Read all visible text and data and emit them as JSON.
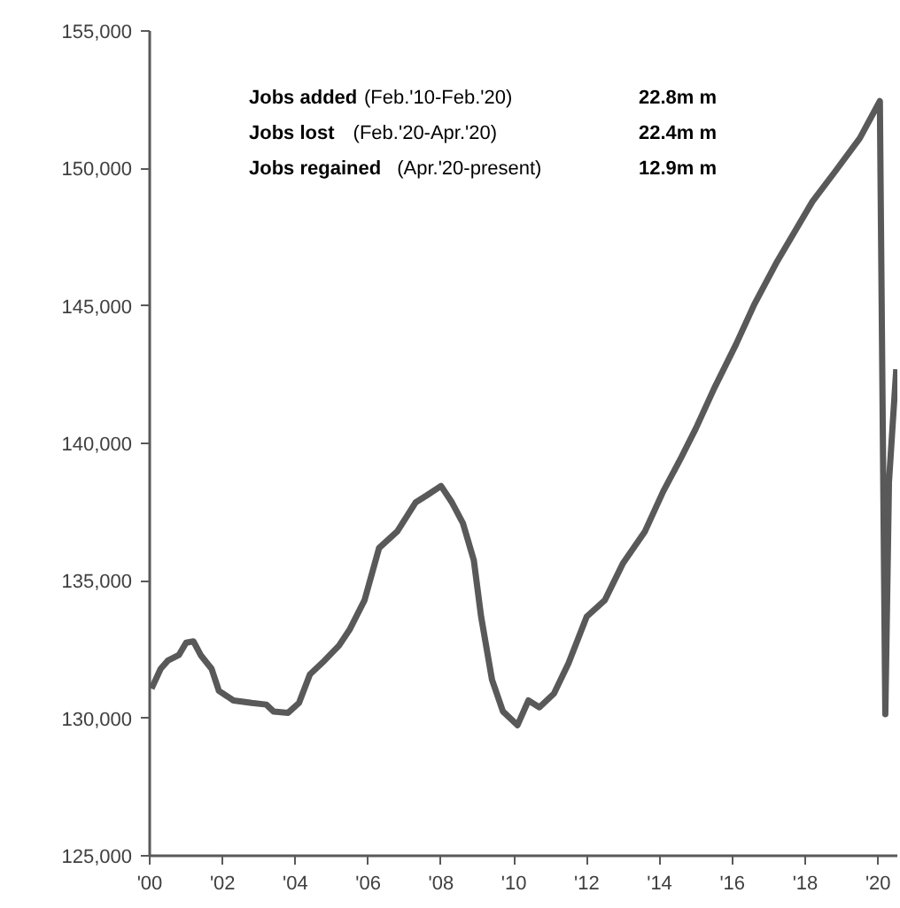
{
  "chart_data": {
    "type": "line",
    "x": [
      2000.05,
      2000.3,
      2000.5,
      2000.8,
      2001.0,
      2001.2,
      2001.4,
      2001.7,
      2001.9,
      2002.3,
      2002.8,
      2003.2,
      2003.4,
      2003.8,
      2004.1,
      2004.4,
      2004.8,
      2005.2,
      2005.5,
      2005.9,
      2006.3,
      2006.8,
      2007.3,
      2007.6,
      2008.0,
      2008.3,
      2008.6,
      2008.9,
      2009.1,
      2009.4,
      2009.7,
      2010.1,
      2010.4,
      2010.7,
      2011.1,
      2011.5,
      2012.0,
      2012.5,
      2013.0,
      2013.6,
      2014.1,
      2014.6,
      2015.0,
      2015.5,
      2016.1,
      2016.6,
      2017.2,
      2018.2,
      2018.8,
      2019.5,
      2020.05,
      2020.2,
      2020.3,
      2020.5
    ],
    "series": [
      {
        "color": "#595959",
        "values": [
          131080,
          131800,
          132100,
          132300,
          132750,
          132800,
          132300,
          131800,
          131000,
          130650,
          130560,
          130500,
          130250,
          130200,
          130560,
          131600,
          132100,
          132650,
          133250,
          134300,
          136200,
          136800,
          137850,
          138100,
          138450,
          137850,
          137100,
          135750,
          133700,
          131400,
          130250,
          129750,
          130650,
          130400,
          130900,
          132000,
          133700,
          134300,
          135650,
          136800,
          138250,
          139500,
          140550,
          142000,
          143600,
          145050,
          146550,
          148800,
          149850,
          151100,
          152450,
          130150,
          138600,
          142700
        ]
      }
    ],
    "xlim": [
      2000,
      2020.53
    ],
    "xticks": [
      {
        "value": 2000,
        "label": "'00"
      },
      {
        "value": 2002,
        "label": "'02"
      },
      {
        "value": 2004,
        "label": "'04"
      },
      {
        "value": 2006,
        "label": "'06"
      },
      {
        "value": 2008,
        "label": "'08"
      },
      {
        "value": 2010,
        "label": "'10"
      },
      {
        "value": 2012,
        "label": "'12"
      },
      {
        "value": 2014,
        "label": "'14"
      },
      {
        "value": 2016,
        "label": "'16"
      },
      {
        "value": 2018,
        "label": "'18"
      },
      {
        "value": 2020,
        "label": "'20"
      }
    ],
    "ylim": [
      125000,
      155000
    ],
    "yticks": [
      {
        "value": 125000,
        "label": "125,000"
      },
      {
        "value": 130000,
        "label": "130,000"
      },
      {
        "value": 135000,
        "label": "135,000"
      },
      {
        "value": 140000,
        "label": "140,000"
      },
      {
        "value": 145000,
        "label": "145,000"
      },
      {
        "value": 150000,
        "label": "150,000"
      },
      {
        "value": 155000,
        "label": "155,000"
      }
    ],
    "annotations": [
      "Jobs added",
      "(Feb.'10-Feb.'20)",
      "22.8m m",
      "Jobs lost",
      "(Feb.'20-Apr.'20)",
      "22.4m m",
      "Jobs regained",
      "(Apr.'20-present)",
      "12.9m m"
    ],
    "grid": false,
    "marker": "none",
    "line_style": "solid"
  }
}
